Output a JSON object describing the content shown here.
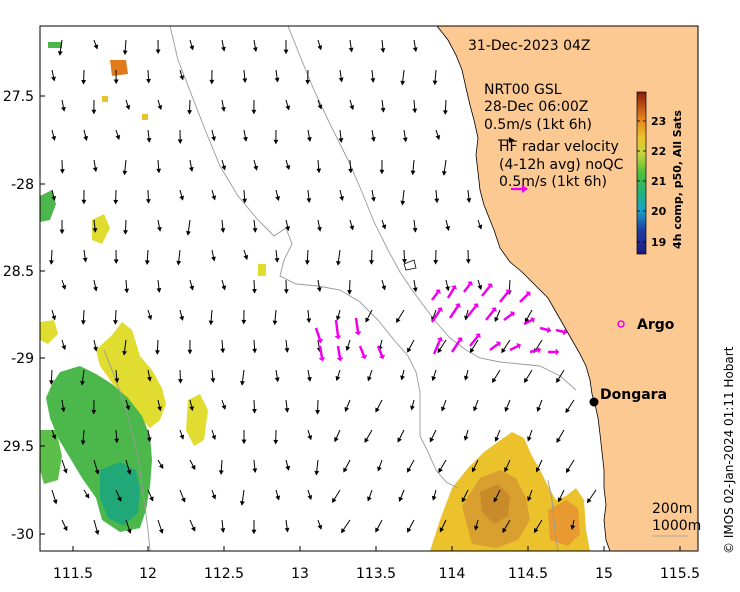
{
  "map": {
    "timestamp": "31-Dec-2023 04Z",
    "lon_ticks": [
      "111.5",
      "12",
      "112.5",
      "13",
      "113.5",
      "114",
      "114.5",
      "15",
      "115.5"
    ],
    "lat_ticks": [
      "27.5",
      "-28",
      "28.5",
      "-29",
      "29.5",
      "-30"
    ],
    "current_legend": {
      "line1": "NRT00 GSL",
      "line2": "28-Dec 06:00Z",
      "line3": "0.5m/s (1kt 6h)"
    },
    "radar_legend": {
      "line1": "HF radar velocity",
      "line2": "(4-12h avg) noQC",
      "line3": "0.5m/s (1kt 6h)"
    },
    "places": {
      "argo": "Argo",
      "dongara": "Dongara"
    },
    "depth_contours": {
      "shallow": "200m",
      "deep": "1000m"
    },
    "colorbar": {
      "title": "4h comp, p50, All Sats",
      "ticks": [
        "23",
        "22",
        "21",
        "20",
        "19"
      ],
      "range": [
        18.6,
        23.9
      ]
    },
    "credit": "© IMOS 02-Jan-2024 01:11 Hobart",
    "colors": {
      "land": "#fcc993",
      "radar_arrow": "#ee00ee",
      "current_arrow": "#000000",
      "contour": "#999999"
    }
  }
}
